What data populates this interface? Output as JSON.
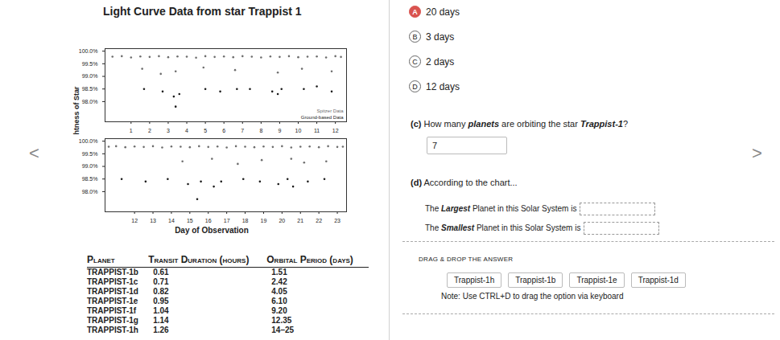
{
  "page": {
    "title": "Light Curve Data from star Trappist 1",
    "nav_prev": "<",
    "nav_next": ">"
  },
  "chart_data": [
    {
      "type": "scatter",
      "ylabel": "Relative Brightness of Star",
      "legend": "bottom-right",
      "xlim": [
        -0.4,
        12.6
      ],
      "xticks": [
        1,
        2,
        3,
        4,
        5,
        6,
        7,
        8,
        9,
        10,
        11,
        12
      ],
      "ylim": [
        97.2,
        100.1
      ],
      "yticks": [
        {
          "value": 100,
          "label": "100.0%"
        },
        {
          "value": 99.5,
          "label": "99.5%"
        },
        {
          "value": 99,
          "label": "99.0%"
        },
        {
          "value": 98.5,
          "label": "98.5%"
        },
        {
          "value": 98,
          "label": "98.0%"
        }
      ],
      "series": [
        {
          "name": "Spitzer Data",
          "color": "#6e6e6e",
          "x": [
            0,
            0.5,
            1,
            1.5,
            2,
            2.5,
            3,
            3.5,
            4,
            4.5,
            5,
            5.5,
            6,
            6.5,
            7,
            7.5,
            8,
            8.5,
            9,
            9.5,
            10,
            10.5,
            11,
            11.5,
            12,
            12.3,
            1.6,
            2.6,
            3.4,
            4.9,
            6.6,
            8.9,
            10.2,
            11.8
          ],
          "values": [
            99.78,
            99.8,
            99.75,
            99.79,
            99.77,
            99.8,
            99.76,
            99.79,
            99.78,
            99.74,
            99.8,
            99.77,
            99.79,
            99.76,
            99.8,
            99.78,
            99.75,
            99.79,
            99.77,
            99.8,
            99.76,
            99.78,
            99.79,
            99.75,
            99.8,
            99.77,
            99.3,
            99.1,
            99.2,
            99.35,
            99.25,
            99.15,
            99.3,
            99.2
          ]
        },
        {
          "name": "Ground-based Data",
          "color": "#1a1a1a",
          "x": [
            1.7,
            2.7,
            3.3,
            3.6,
            5.0,
            5.8,
            6.7,
            7.4,
            8.6,
            8.9,
            9.1,
            10.3,
            11.0,
            11.8,
            3.4
          ],
          "values": [
            98.5,
            98.4,
            98.2,
            98.3,
            98.5,
            98.4,
            98.5,
            98.5,
            98.4,
            98.3,
            98.5,
            98.5,
            98.6,
            98.4,
            97.8
          ]
        }
      ]
    },
    {
      "type": "scatter",
      "xlabel": "Day of Observation",
      "xlim": [
        10.4,
        23.5
      ],
      "xticks": [
        12,
        13,
        14,
        15,
        16,
        17,
        18,
        19,
        20,
        21,
        22,
        23
      ],
      "ylim": [
        97.2,
        100.1
      ],
      "yticks": [
        {
          "value": 100,
          "label": "100.0%"
        },
        {
          "value": 99.5,
          "label": "99.5%"
        },
        {
          "value": 99,
          "label": "99.0%"
        },
        {
          "value": 98.5,
          "label": "98.5%"
        },
        {
          "value": 98,
          "label": "98.0%"
        }
      ],
      "series": [
        {
          "name": "Spitzer Data",
          "color": "#6e6e6e",
          "x": [
            10.6,
            11,
            11.5,
            12,
            12.5,
            13,
            13.5,
            14,
            14.5,
            15,
            15.5,
            16,
            16.5,
            17,
            17.5,
            18,
            18.5,
            19,
            19.5,
            20,
            20.5,
            21,
            21.5,
            22,
            22.5,
            23,
            23.3,
            14.6,
            16.2,
            17.6,
            18.9,
            20.5,
            21.2,
            22.4
          ],
          "values": [
            99.78,
            99.8,
            99.76,
            99.79,
            99.77,
            99.8,
            99.75,
            99.79,
            99.78,
            99.76,
            99.8,
            99.77,
            99.79,
            99.75,
            99.8,
            99.78,
            99.76,
            99.79,
            99.77,
            99.8,
            99.75,
            99.78,
            99.79,
            99.76,
            99.8,
            99.77,
            99.78,
            99.2,
            99.3,
            99.1,
            99.25,
            99.3,
            99.15,
            99.2
          ]
        },
        {
          "name": "Ground-based Data",
          "color": "#1a1a1a",
          "x": [
            11.3,
            12.6,
            13.8,
            14.9,
            15.6,
            16.3,
            16.7,
            17.9,
            18.8,
            19.8,
            20.3,
            20.6,
            21.4,
            22.3,
            15.4
          ],
          "values": [
            98.5,
            98.4,
            98.5,
            98.3,
            98.4,
            98.2,
            98.4,
            98.5,
            98.4,
            98.3,
            98.5,
            98.2,
            98.4,
            98.5,
            97.7
          ]
        }
      ]
    }
  ],
  "table": {
    "columns": [
      "Planet",
      "Transit Duration (hours)",
      "Orbital Period (days)"
    ],
    "rows": [
      [
        "TRAPPIST-1b",
        "0.61",
        "1.51"
      ],
      [
        "TRAPPIST-1c",
        "0.71",
        "2.42"
      ],
      [
        "TRAPPIST-1d",
        "0.82",
        "4.05"
      ],
      [
        "TRAPPIST-1e",
        "0.95",
        "6.10"
      ],
      [
        "TRAPPIST-1f",
        "1.04",
        "9.20"
      ],
      [
        "TRAPPIST-1g",
        "1.14",
        "12.35"
      ],
      [
        "TRAPPIST-1h",
        "1.26",
        "14–25"
      ]
    ]
  },
  "questions": {
    "options": [
      {
        "letter": "A",
        "text": "20 days",
        "selected": true
      },
      {
        "letter": "B",
        "text": "3 days",
        "selected": false
      },
      {
        "letter": "C",
        "text": "2 days",
        "selected": false
      },
      {
        "letter": "D",
        "text": "12 days",
        "selected": false
      }
    ],
    "c": {
      "label": "(c)",
      "text": "How many planets are orbiting the star Trappist-1?",
      "emphasis": [
        "planets",
        "Trappist-1"
      ],
      "answer": "7"
    },
    "d": {
      "label": "(d)",
      "text": "According to the chart...",
      "blanks": [
        {
          "text": "The Largest Planet in this Solar System is",
          "emphasis": [
            "Largest"
          ]
        },
        {
          "text": "The Smallest Planet in this Solar System is",
          "emphasis": [
            "Smallest"
          ]
        }
      ]
    },
    "drag": {
      "heading": "DRAG & DROP THE ANSWER",
      "choices": [
        "Trappist-1h",
        "Trappist-1b",
        "Trappist-1e",
        "Trappist-1d"
      ],
      "note": "Note: Use CTRL+D to drag the option via keyboard"
    }
  }
}
